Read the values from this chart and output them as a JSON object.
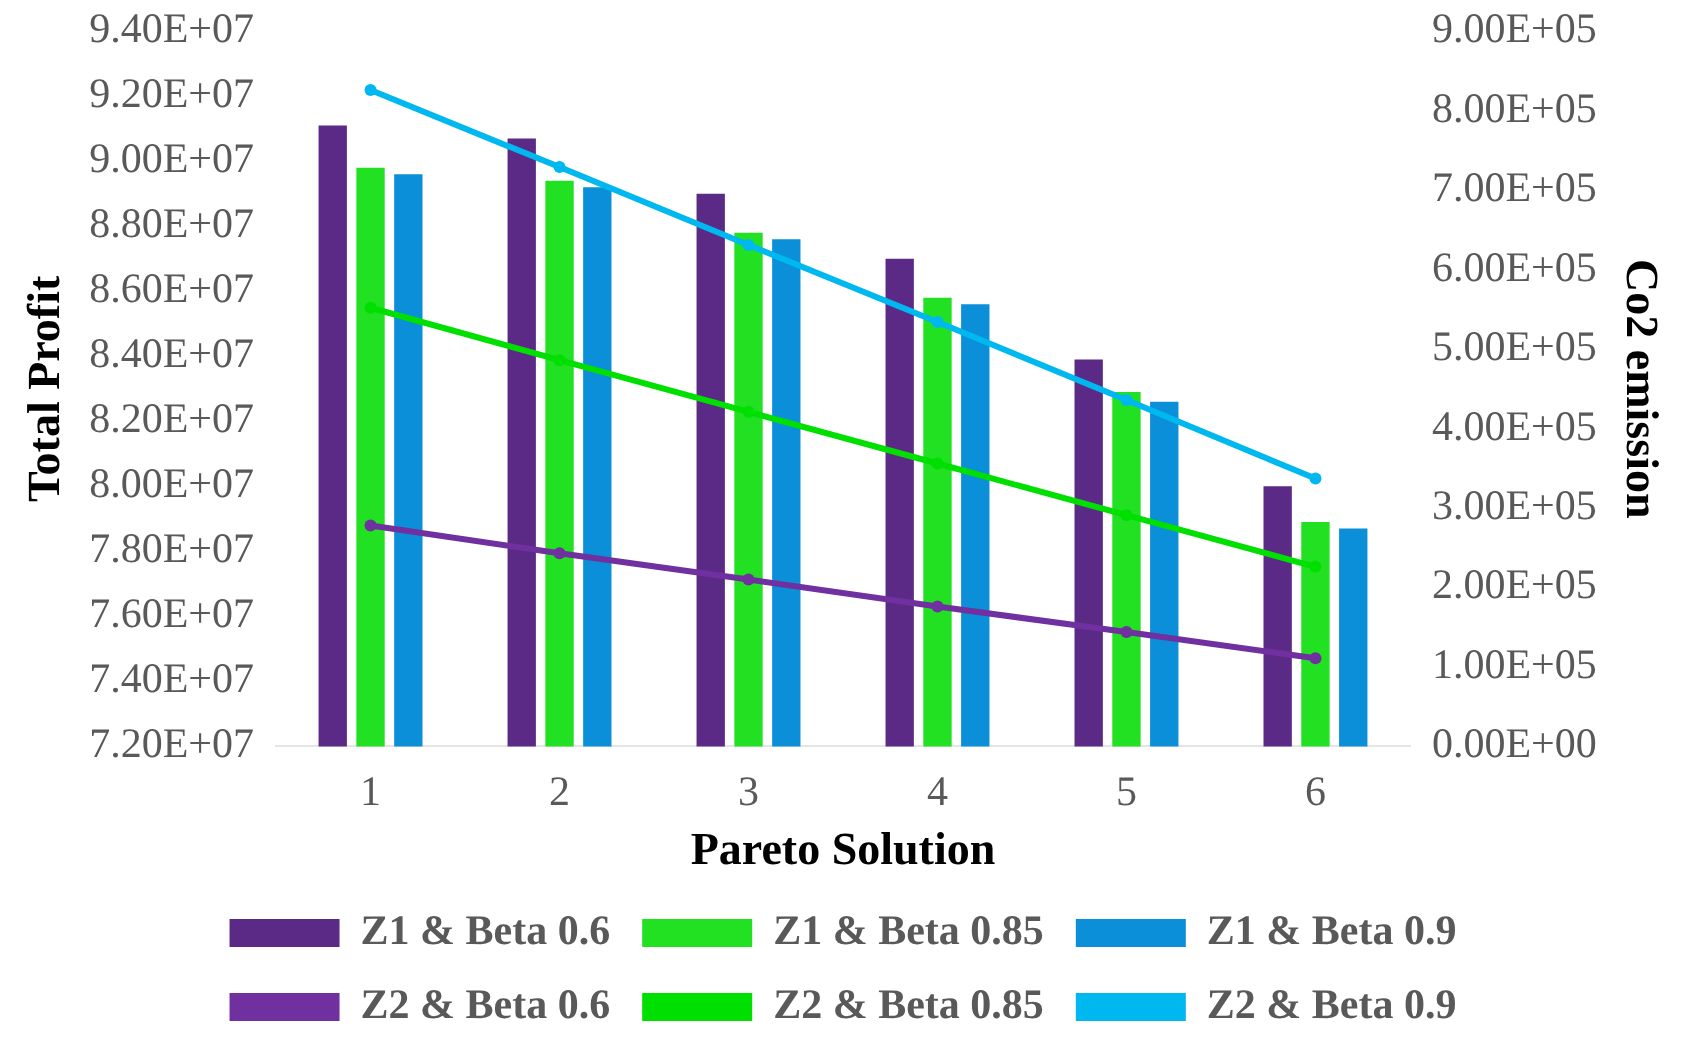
{
  "chart_data": {
    "type": "bar",
    "xlabel": "Pareto Solution",
    "ylabel": "Total Profit",
    "y2label": "Co2 emission",
    "categories": [
      "1",
      "2",
      "3",
      "4",
      "5",
      "6"
    ],
    "series": [
      {
        "name": "Z1 & Beta 0.6",
        "color": "#5b2a86",
        "values": [
          91100000,
          90700000,
          89000000,
          87000000,
          83900000,
          80000000
        ]
      },
      {
        "name": "Z1 & Beta 0.85",
        "color": "#22e022",
        "values": [
          89800000,
          89400000,
          87800000,
          85800000,
          82900000,
          78900000
        ]
      },
      {
        "name": "Z1 & Beta 0.9",
        "color": "#0a8fd8",
        "values": [
          89600000,
          89200000,
          87600000,
          85600000,
          82600000,
          78700000
        ]
      },
      {
        "name": "Z2 & Beta 0.6",
        "type": "line",
        "axis": "y2",
        "color": "#7030a0",
        "values": [
          278000,
          243000,
          210000,
          176000,
          144000,
          111000
        ]
      },
      {
        "name": "Z2 & Beta 0.85",
        "type": "line",
        "axis": "y2",
        "color": "#00e000",
        "values": [
          552000,
          486000,
          421000,
          356000,
          291000,
          226000
        ]
      },
      {
        "name": "Z2 & Beta 0.9",
        "type": "line",
        "axis": "y2",
        "color": "#00b8f0",
        "values": [
          826000,
          729000,
          631000,
          534000,
          436000,
          337000
        ]
      }
    ],
    "ylim": [
      72000000,
      94000000
    ],
    "yticks": [
      {
        "value": 72000000,
        "label": "7.20E+07"
      },
      {
        "value": 74000000,
        "label": "7.40E+07"
      },
      {
        "value": 76000000,
        "label": "7.60E+07"
      },
      {
        "value": 78000000,
        "label": "7.80E+07"
      },
      {
        "value": 80000000,
        "label": "8.00E+07"
      },
      {
        "value": 82000000,
        "label": "8.20E+07"
      },
      {
        "value": 84000000,
        "label": "8.40E+07"
      },
      {
        "value": 86000000,
        "label": "8.60E+07"
      },
      {
        "value": 88000000,
        "label": "8.80E+07"
      },
      {
        "value": 90000000,
        "label": "9.00E+07"
      },
      {
        "value": 92000000,
        "label": "9.20E+07"
      },
      {
        "value": 94000000,
        "label": "9.40E+07"
      }
    ],
    "y2lim": [
      0,
      900000
    ],
    "y2ticks": [
      {
        "value": 0,
        "label": "0.00E+00"
      },
      {
        "value": 100000,
        "label": "1.00E+05"
      },
      {
        "value": 200000,
        "label": "2.00E+05"
      },
      {
        "value": 300000,
        "label": "3.00E+05"
      },
      {
        "value": 400000,
        "label": "4.00E+05"
      },
      {
        "value": 500000,
        "label": "5.00E+05"
      },
      {
        "value": 600000,
        "label": "6.00E+05"
      },
      {
        "value": 700000,
        "label": "7.00E+05"
      },
      {
        "value": 800000,
        "label": "8.00E+05"
      },
      {
        "value": 900000,
        "label": "9.00E+05"
      }
    ],
    "grid": false,
    "legend": "bottom",
    "marker": "circle",
    "line_style": "solid"
  }
}
